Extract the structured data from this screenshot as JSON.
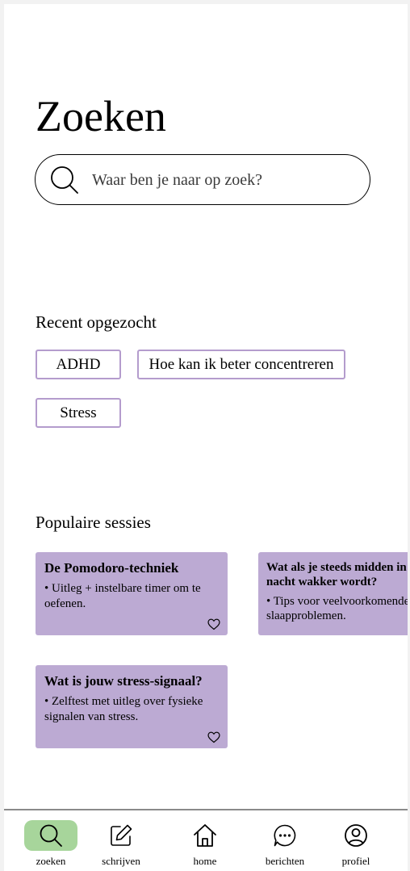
{
  "page": {
    "title": "Zoeken"
  },
  "search": {
    "placeholder": "Waar ben je naar op zoek?"
  },
  "recent": {
    "title": "Recent opgezocht",
    "items": [
      "ADHD",
      "Hoe kan ik beter concentreren",
      "Stress"
    ]
  },
  "popular": {
    "title": "Populaire sessies",
    "cards": [
      {
        "title": "De Pomodoro-techniek",
        "description": "•  Uitleg + instelbare timer om te oefenen."
      },
      {
        "title": "Wat als je steeds midden in de nacht wakker wordt?",
        "description": "•  Tips voor veelvoorkomende slaapproblemen."
      },
      {
        "title": "Wat is jouw stress-signaal?",
        "description": "•  Zelftest met uitleg over fysieke signalen van stress."
      }
    ]
  },
  "nav": {
    "items": [
      {
        "label": "zoeken",
        "icon": "search-icon",
        "active": true
      },
      {
        "label": "schrijven",
        "icon": "edit-icon",
        "active": false
      },
      {
        "label": "home",
        "icon": "home-icon",
        "active": false
      },
      {
        "label": "berichten",
        "icon": "chat-icon",
        "active": false
      },
      {
        "label": "profiel",
        "icon": "profile-icon",
        "active": false
      }
    ]
  },
  "colors": {
    "chip_border": "#b49ccd",
    "card_background": "#bcaad3",
    "nav_active": "#a7d59b"
  }
}
